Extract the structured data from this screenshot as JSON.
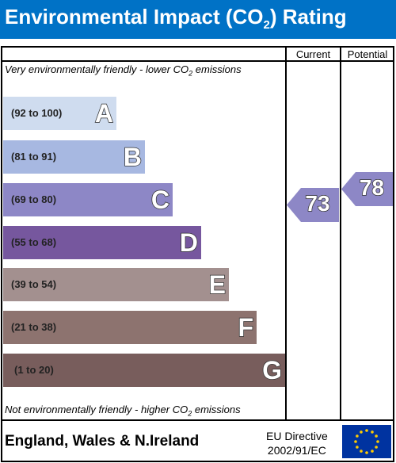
{
  "header": {
    "title_pre": "Environmental Impact (CO",
    "title_sub": "2",
    "title_post": ") Rating"
  },
  "columns": {
    "current": "Current",
    "potential": "Potential"
  },
  "notes": {
    "top_pre": "Very environmentally friendly - lower CO",
    "top_sub": "2",
    "top_post": " emissions",
    "bottom_pre": "Not environmentally friendly - higher CO",
    "bottom_sub": "2",
    "bottom_post": " emissions"
  },
  "bands": [
    {
      "range": "(92 to 100)",
      "letter": "A",
      "color": "#cfdcef"
    },
    {
      "range": "(81 to 91)",
      "letter": "B",
      "color": "#a7b8e1"
    },
    {
      "range": "(69 to 80)",
      "letter": "C",
      "color": "#8d87c6"
    },
    {
      "range": "(55 to 68)",
      "letter": "D",
      "color": "#76579e"
    },
    {
      "range": "(39 to 54)",
      "letter": "E",
      "color": "#a3908f"
    },
    {
      "range": "(21 to 38)",
      "letter": "F",
      "color": "#8d736f"
    },
    {
      "range": "(1 to 20)",
      "letter": "G",
      "color": "#785d5c"
    }
  ],
  "ratings": {
    "current": {
      "value": "73",
      "band": "C",
      "color": "#8d87c6"
    },
    "potential": {
      "value": "78",
      "band": "C",
      "color": "#8d87c6"
    }
  },
  "footer": {
    "region": "England, Wales & N.Ireland",
    "directive_line1": "EU Directive",
    "directive_line2": "2002/91/EC"
  },
  "icons": {
    "flag": "eu-flag-icon"
  }
}
